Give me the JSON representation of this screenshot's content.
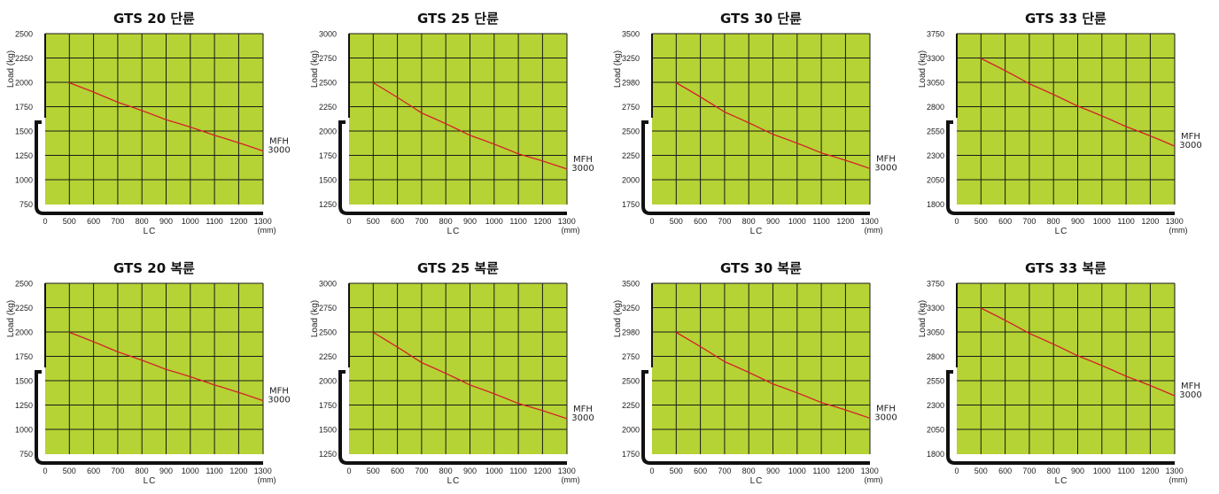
{
  "chart_data": [
    {
      "type": "line",
      "title": "GTS 20  단륜",
      "ylabel": "Load (kg)",
      "xlabel": "LC",
      "x_unit": "(mm)",
      "x_ticks": [
        "0",
        "500",
        "600",
        "700",
        "800",
        "900",
        "1000",
        "1100",
        "1200",
        "1300"
      ],
      "y_ticks": [
        "750",
        "1000",
        "1250",
        "1500",
        "1750",
        "2000",
        "2250",
        "2500"
      ],
      "series": [
        {
          "name": "MFH 3000",
          "x": [
            500,
            700,
            900,
            1100,
            1300
          ],
          "y": [
            2000,
            1800,
            1620,
            1460,
            1300
          ]
        }
      ],
      "curve_color": "#d4202a",
      "plot_color": "#b5d334",
      "grid": true
    },
    {
      "type": "line",
      "title": "GTS 25  단륜",
      "ylabel": "Load (kg)",
      "xlabel": "LC",
      "x_unit": "(mm)",
      "x_ticks": [
        "0",
        "500",
        "600",
        "700",
        "800",
        "900",
        "1000",
        "1100",
        "1200",
        "1300"
      ],
      "y_ticks": [
        "1250",
        "1500",
        "1750",
        "2000",
        "2250",
        "2500",
        "2750",
        "3000"
      ],
      "series": [
        {
          "name": "MFH 3000",
          "x": [
            500,
            700,
            900,
            1100,
            1300
          ],
          "y": [
            2500,
            2190,
            1960,
            1770,
            1615
          ]
        }
      ],
      "curve_color": "#d4202a",
      "plot_color": "#b5d334",
      "grid": true
    },
    {
      "type": "line",
      "title": "GTS 30  단륜",
      "ylabel": "Load (kg)",
      "xlabel": "LC",
      "x_unit": "(mm)",
      "x_ticks": [
        "0",
        "500",
        "600",
        "700",
        "800",
        "900",
        "1000",
        "1100",
        "1200",
        "1300"
      ],
      "y_ticks": [
        "1750",
        "2000",
        "2250",
        "2500",
        "2750",
        "2980",
        "3250",
        "3500"
      ],
      "series": [
        {
          "name": "MFH 3000",
          "x": [
            500,
            700,
            900,
            1100,
            1300
          ],
          "y": [
            2980,
            2700,
            2470,
            2280,
            2120
          ]
        }
      ],
      "curve_color": "#d4202a",
      "plot_color": "#b5d334",
      "grid": true
    },
    {
      "type": "line",
      "title": "GTS 33  단륜",
      "ylabel": "Load (kg)",
      "xlabel": "LC",
      "x_unit": "(mm)",
      "x_ticks": [
        "0",
        "500",
        "600",
        "700",
        "800",
        "900",
        "1000",
        "1100",
        "1200",
        "1300"
      ],
      "y_ticks": [
        "1800",
        "2050",
        "2300",
        "2550",
        "2800",
        "3050",
        "3300",
        "3750"
      ],
      "series": [
        {
          "name": "MFH 3000",
          "x": [
            500,
            700,
            900,
            1100,
            1300
          ],
          "y": [
            3300,
            3040,
            2810,
            2600,
            2400
          ]
        }
      ],
      "curve_color": "#d4202a",
      "plot_color": "#b5d334",
      "grid": true
    },
    {
      "type": "line",
      "title": "GTS 20  복륜",
      "ylabel": "Load (kg)",
      "xlabel": "LC",
      "x_unit": "(mm)",
      "x_ticks": [
        "0",
        "500",
        "600",
        "700",
        "800",
        "900",
        "1000",
        "1100",
        "1200",
        "1300"
      ],
      "y_ticks": [
        "750",
        "1000",
        "1250",
        "1500",
        "1750",
        "2000",
        "2250",
        "2500"
      ],
      "series": [
        {
          "name": "MFH 3000",
          "x": [
            500,
            700,
            900,
            1100,
            1300
          ],
          "y": [
            2000,
            1800,
            1620,
            1460,
            1300
          ]
        }
      ],
      "curve_color": "#d4202a",
      "plot_color": "#b5d334",
      "grid": true
    },
    {
      "type": "line",
      "title": "GTS 25  복륜",
      "ylabel": "Load (kg)",
      "xlabel": "LC",
      "x_unit": "(mm)",
      "x_ticks": [
        "0",
        "500",
        "600",
        "700",
        "800",
        "900",
        "1000",
        "1100",
        "1200",
        "1300"
      ],
      "y_ticks": [
        "1250",
        "1500",
        "1750",
        "2000",
        "2250",
        "2500",
        "2750",
        "3000"
      ],
      "series": [
        {
          "name": "MFH 3000",
          "x": [
            500,
            700,
            900,
            1100,
            1300
          ],
          "y": [
            2500,
            2190,
            1960,
            1770,
            1615
          ]
        }
      ],
      "curve_color": "#d4202a",
      "plot_color": "#b5d334",
      "grid": true
    },
    {
      "type": "line",
      "title": "GTS 30  복륜",
      "ylabel": "Load (kg)",
      "xlabel": "LC",
      "x_unit": "(mm)",
      "x_ticks": [
        "0",
        "500",
        "600",
        "700",
        "800",
        "900",
        "1000",
        "1100",
        "1200",
        "1300"
      ],
      "y_ticks": [
        "1750",
        "2000",
        "2250",
        "2500",
        "2750",
        "2980",
        "3250",
        "3500"
      ],
      "series": [
        {
          "name": "MFH 3000",
          "x": [
            500,
            700,
            900,
            1100,
            1300
          ],
          "y": [
            2980,
            2700,
            2470,
            2280,
            2120
          ]
        }
      ],
      "curve_color": "#d4202a",
      "plot_color": "#b5d334",
      "grid": true
    },
    {
      "type": "line",
      "title": "GTS 33  복륜",
      "ylabel": "Load (kg)",
      "xlabel": "LC",
      "x_unit": "(mm)",
      "x_ticks": [
        "0",
        "500",
        "600",
        "700",
        "800",
        "900",
        "1000",
        "1100",
        "1200",
        "1300"
      ],
      "y_ticks": [
        "1800",
        "2050",
        "2300",
        "2550",
        "2800",
        "3050",
        "3300",
        "3750"
      ],
      "series": [
        {
          "name": "MFH 3000",
          "x": [
            500,
            700,
            900,
            1100,
            1300
          ],
          "y": [
            3300,
            3040,
            2810,
            2600,
            2400
          ]
        }
      ],
      "curve_color": "#d4202a",
      "plot_color": "#b5d334",
      "grid": true
    }
  ]
}
